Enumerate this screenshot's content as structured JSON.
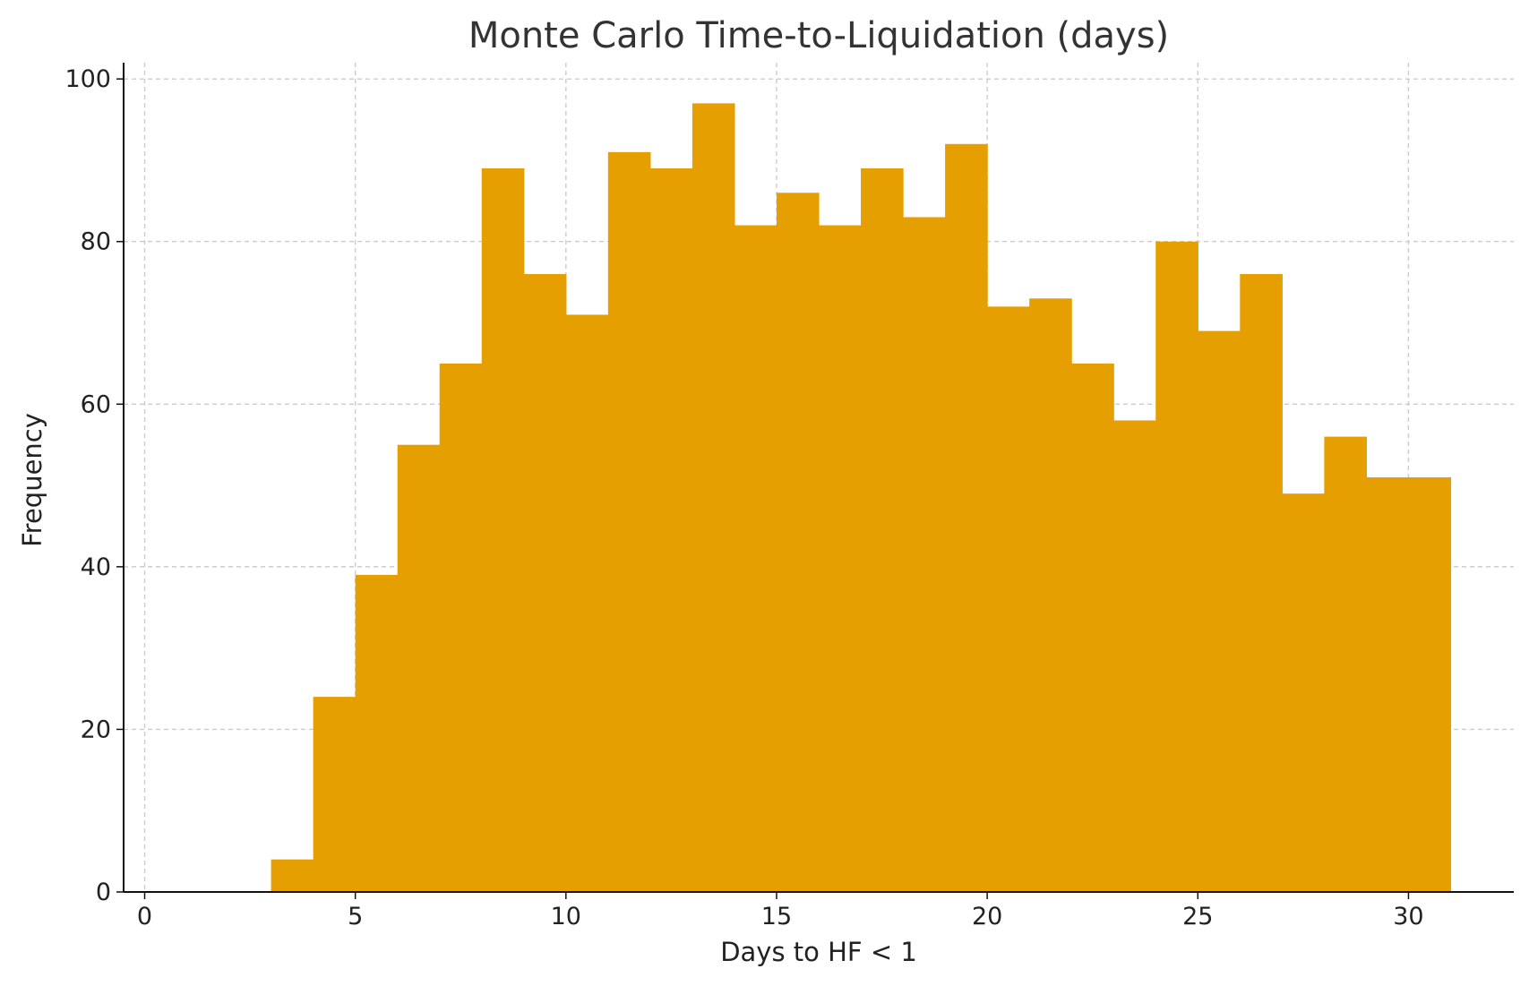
{
  "chart_data": {
    "type": "bar",
    "title": "Monte Carlo Time-to-Liquidation (days)",
    "xlabel": "Days to HF < 1",
    "ylabel": "Frequency",
    "xlim": [
      -0.5,
      32.5
    ],
    "ylim": [
      0,
      102
    ],
    "x_ticks": [
      0,
      5,
      10,
      15,
      20,
      25,
      30
    ],
    "y_ticks": [
      0,
      20,
      40,
      60,
      80,
      100
    ],
    "grid": true,
    "bar_color": "#E69F00",
    "bin_edges": [
      3,
      4,
      5,
      6,
      7,
      8,
      9,
      10,
      11,
      12,
      13,
      14,
      15,
      16,
      17,
      18,
      19,
      20,
      21,
      22,
      23,
      24,
      25,
      26,
      27,
      28,
      29,
      30,
      31
    ],
    "values": [
      4,
      24,
      39,
      55,
      65,
      89,
      76,
      71,
      91,
      89,
      97,
      82,
      86,
      82,
      89,
      83,
      92,
      72,
      73,
      65,
      58,
      80,
      69,
      76,
      49,
      56,
      51,
      51
    ]
  }
}
